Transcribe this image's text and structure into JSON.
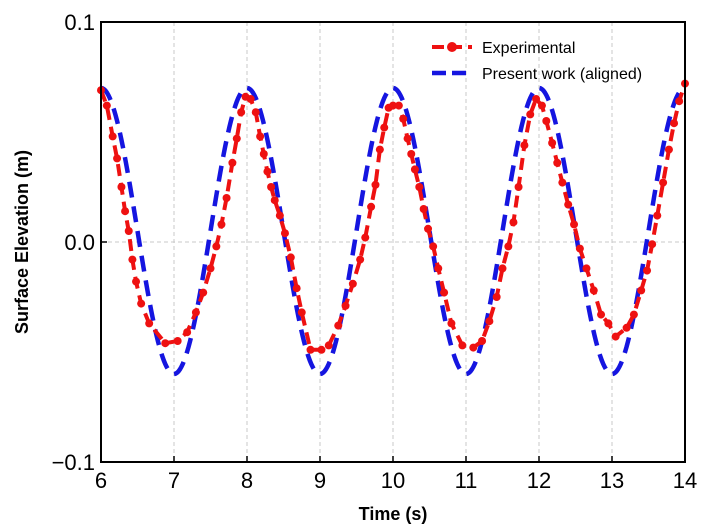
{
  "chart_data": {
    "type": "line",
    "xlabel": "Time (s)",
    "ylabel": "Surface Elevation (m)",
    "xlim": [
      6,
      14
    ],
    "ylim": [
      -0.1,
      0.1
    ],
    "x_ticks": [
      "6",
      "7",
      "8",
      "9",
      "10",
      "11",
      "12",
      "13",
      "14"
    ],
    "y_ticks": [
      "−0.1",
      "0.0",
      "0.1"
    ],
    "grid": true,
    "legend_position": "top-right",
    "series": [
      {
        "name": "Experimental",
        "color": "#ee1111",
        "style": "dashed line with circle markers",
        "points": [
          [
            6.0,
            0.069
          ],
          [
            6.08,
            0.062
          ],
          [
            6.16,
            0.048
          ],
          [
            6.22,
            0.038
          ],
          [
            6.28,
            0.025
          ],
          [
            6.33,
            0.014
          ],
          [
            6.38,
            0.005
          ],
          [
            6.43,
            -0.008
          ],
          [
            6.48,
            -0.018
          ],
          [
            6.55,
            -0.028
          ],
          [
            6.66,
            -0.037
          ],
          [
            6.88,
            -0.046
          ],
          [
            7.05,
            -0.045
          ],
          [
            7.18,
            -0.041
          ],
          [
            7.3,
            -0.032
          ],
          [
            7.4,
            -0.023
          ],
          [
            7.5,
            -0.012
          ],
          [
            7.58,
            -0.002
          ],
          [
            7.65,
            0.008
          ],
          [
            7.72,
            0.02
          ],
          [
            7.8,
            0.036
          ],
          [
            7.86,
            0.047
          ],
          [
            7.92,
            0.059
          ],
          [
            7.98,
            0.066
          ],
          [
            8.05,
            0.065
          ],
          [
            8.12,
            0.059
          ],
          [
            8.18,
            0.048
          ],
          [
            8.23,
            0.04
          ],
          [
            8.28,
            0.032
          ],
          [
            8.33,
            0.025
          ],
          [
            8.38,
            0.019
          ],
          [
            8.45,
            0.012
          ],
          [
            8.52,
            0.004
          ],
          [
            8.6,
            -0.007
          ],
          [
            8.68,
            -0.021
          ],
          [
            8.75,
            -0.032
          ],
          [
            8.87,
            -0.049
          ],
          [
            9.02,
            -0.049
          ],
          [
            9.12,
            -0.047
          ],
          [
            9.25,
            -0.038
          ],
          [
            9.35,
            -0.029
          ],
          [
            9.45,
            -0.019
          ],
          [
            9.55,
            -0.008
          ],
          [
            9.62,
            0.002
          ],
          [
            9.7,
            0.016
          ],
          [
            9.76,
            0.026
          ],
          [
            9.82,
            0.042
          ],
          [
            9.88,
            0.052
          ],
          [
            9.94,
            0.061
          ],
          [
            10.0,
            0.062
          ],
          [
            10.08,
            0.062
          ],
          [
            10.14,
            0.056
          ],
          [
            10.2,
            0.047
          ],
          [
            10.25,
            0.04
          ],
          [
            10.3,
            0.033
          ],
          [
            10.36,
            0.025
          ],
          [
            10.42,
            0.015
          ],
          [
            10.48,
            0.006
          ],
          [
            10.55,
            -0.002
          ],
          [
            10.62,
            -0.012
          ],
          [
            10.7,
            -0.023
          ],
          [
            10.8,
            -0.037
          ],
          [
            10.95,
            -0.047
          ],
          [
            11.1,
            -0.048
          ],
          [
            11.22,
            -0.045
          ],
          [
            11.32,
            -0.036
          ],
          [
            11.42,
            -0.025
          ],
          [
            11.5,
            -0.012
          ],
          [
            11.58,
            -0.002
          ],
          [
            11.65,
            0.009
          ],
          [
            11.72,
            0.025
          ],
          [
            11.8,
            0.044
          ],
          [
            11.88,
            0.058
          ],
          [
            11.96,
            0.065
          ],
          [
            12.04,
            0.062
          ],
          [
            12.1,
            0.055
          ],
          [
            12.18,
            0.045
          ],
          [
            12.25,
            0.036
          ],
          [
            12.32,
            0.027
          ],
          [
            12.4,
            0.017
          ],
          [
            12.48,
            0.008
          ],
          [
            12.56,
            -0.003
          ],
          [
            12.65,
            -0.012
          ],
          [
            12.75,
            -0.022
          ],
          [
            12.85,
            -0.033
          ],
          [
            12.95,
            -0.037
          ],
          [
            13.05,
            -0.043
          ],
          [
            13.2,
            -0.039
          ],
          [
            13.3,
            -0.033
          ],
          [
            13.4,
            -0.022
          ],
          [
            13.48,
            -0.013
          ],
          [
            13.55,
            -0.001
          ],
          [
            13.62,
            0.012
          ],
          [
            13.7,
            0.027
          ],
          [
            13.78,
            0.042
          ],
          [
            13.85,
            0.054
          ],
          [
            13.92,
            0.064
          ],
          [
            14.0,
            0.072
          ]
        ]
      },
      {
        "name": "Present work (aligned)",
        "color": "#1515e0",
        "style": "dashed line",
        "amplitude": 0.065,
        "mean": 0.005,
        "period": 2.0,
        "crest_times": [
          6.0,
          8.0,
          10.0,
          12.0,
          14.0
        ]
      }
    ]
  }
}
